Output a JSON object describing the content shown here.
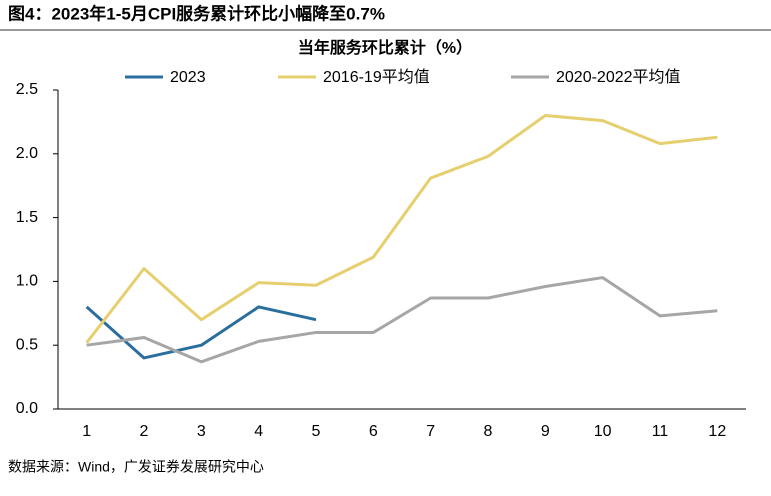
{
  "chart_data": {
    "type": "line",
    "title": "图4：2023年1-5月CPI服务累计环比小幅降至0.7%",
    "subtitle": "当年服务环比累计（%）",
    "source": "数据来源：Wind，广发证券发展研究中心",
    "categories": [
      "1",
      "2",
      "3",
      "4",
      "5",
      "6",
      "7",
      "8",
      "9",
      "10",
      "11",
      "12"
    ],
    "series": [
      {
        "name": "2023",
        "color": "#2a6e9e",
        "values": [
          0.8,
          0.4,
          0.5,
          0.8,
          0.7,
          null,
          null,
          null,
          null,
          null,
          null,
          null
        ]
      },
      {
        "name": "2016-19平均值",
        "color": "#e6cf6e",
        "values": [
          0.52,
          1.1,
          0.7,
          0.99,
          0.97,
          1.19,
          1.81,
          1.98,
          2.3,
          2.26,
          2.08,
          2.13
        ]
      },
      {
        "name": "2020-2022平均值",
        "color": "#a6a6a6",
        "values": [
          0.5,
          0.56,
          0.37,
          0.53,
          0.6,
          0.6,
          0.87,
          0.87,
          0.96,
          1.03,
          0.73,
          0.77
        ]
      }
    ],
    "ylim": [
      0,
      2.5
    ],
    "yticks": [
      {
        "value": 0,
        "label": "0.0"
      },
      0.5,
      {
        "value": 1,
        "label": "1.0"
      },
      1.5,
      {
        "value": 2,
        "label": "2.0"
      },
      2.5
    ],
    "grid": false
  }
}
